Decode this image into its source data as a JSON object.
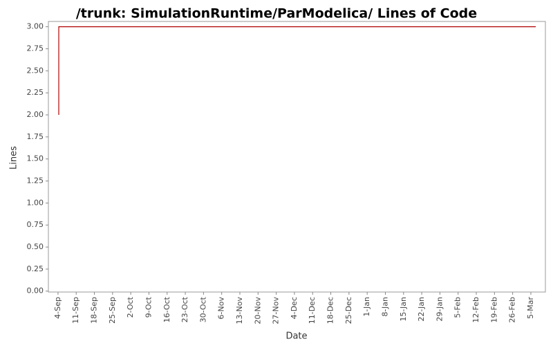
{
  "chart_data": {
    "type": "line",
    "title": "/trunk: SimulationRuntime/ParModelica/ Lines of Code",
    "x_label": "Date",
    "y_label": "Lines",
    "x": [
      0.3,
      0.3,
      183.9
    ],
    "series": [
      {
        "name": "Lines",
        "color": "#b00000",
        "values": [
          2,
          3,
          3
        ]
      }
    ],
    "xlim": [
      -3.7,
      187.6
    ],
    "xticks": [
      {
        "value": 0,
        "label": "4-Sep"
      },
      {
        "value": 7,
        "label": "11-Sep"
      },
      {
        "value": 14,
        "label": "18-Sep"
      },
      {
        "value": 21,
        "label": "25-Sep"
      },
      {
        "value": 28,
        "label": "2-Oct"
      },
      {
        "value": 35,
        "label": "9-Oct"
      },
      {
        "value": 42,
        "label": "16-Oct"
      },
      {
        "value": 49,
        "label": "23-Oct"
      },
      {
        "value": 56,
        "label": "30-Oct"
      },
      {
        "value": 63,
        "label": "6-Nov"
      },
      {
        "value": 70,
        "label": "13-Nov"
      },
      {
        "value": 77,
        "label": "20-Nov"
      },
      {
        "value": 84,
        "label": "27-Nov"
      },
      {
        "value": 91,
        "label": "4-Dec"
      },
      {
        "value": 98,
        "label": "11-Dec"
      },
      {
        "value": 105,
        "label": "18-Dec"
      },
      {
        "value": 112,
        "label": "25-Dec"
      },
      {
        "value": 119,
        "label": "1-Jan"
      },
      {
        "value": 126,
        "label": "8-Jan"
      },
      {
        "value": 133,
        "label": "15-Jan"
      },
      {
        "value": 140,
        "label": "22-Jan"
      },
      {
        "value": 147,
        "label": "29-Jan"
      },
      {
        "value": 154,
        "label": "5-Feb"
      },
      {
        "value": 161,
        "label": "12-Feb"
      },
      {
        "value": 168,
        "label": "19-Feb"
      },
      {
        "value": 175,
        "label": "26-Feb"
      },
      {
        "value": 182,
        "label": "5-Mar"
      }
    ],
    "ylim": [
      -0.01,
      3.06
    ],
    "yticks": [
      {
        "value": 0,
        "label": "0.00"
      },
      {
        "value": 0.25,
        "label": "0.25"
      },
      {
        "value": 0.5,
        "label": "0.50"
      },
      {
        "value": 0.75,
        "label": "0.75"
      },
      {
        "value": 1,
        "label": "1.00"
      },
      {
        "value": 1.25,
        "label": "1.25"
      },
      {
        "value": 1.5,
        "label": "1.50"
      },
      {
        "value": 1.75,
        "label": "1.75"
      },
      {
        "value": 2,
        "label": "2.00"
      },
      {
        "value": 2.25,
        "label": "2.25"
      },
      {
        "value": 2.5,
        "label": "2.50"
      },
      {
        "value": 2.75,
        "label": "2.75"
      },
      {
        "value": 3,
        "label": "3.00"
      }
    ],
    "grid": false
  }
}
